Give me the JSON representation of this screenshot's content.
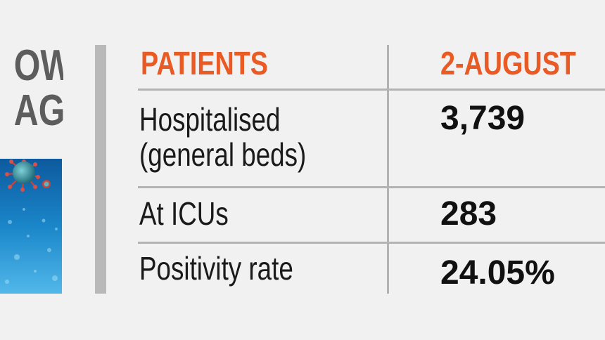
{
  "side_panel": {
    "title_line1": "OW",
    "title_line2": "AGO",
    "image_icon": "coronavirus-illustration"
  },
  "table": {
    "headers": [
      "PATIENTS",
      "2-AUGUST"
    ],
    "rows": [
      {
        "label_line1": "Hospitalised",
        "label_line2": "(general beds)",
        "value": "3,739"
      },
      {
        "label_line1": "At ICUs",
        "value": "283"
      },
      {
        "label_line1": "Positivity rate",
        "value": "24.05%"
      }
    ]
  },
  "colors": {
    "header": "#ea5a24",
    "background": "#f1f1f1",
    "rules": "#b3b3b3",
    "side_title": "#5d5d5d"
  }
}
